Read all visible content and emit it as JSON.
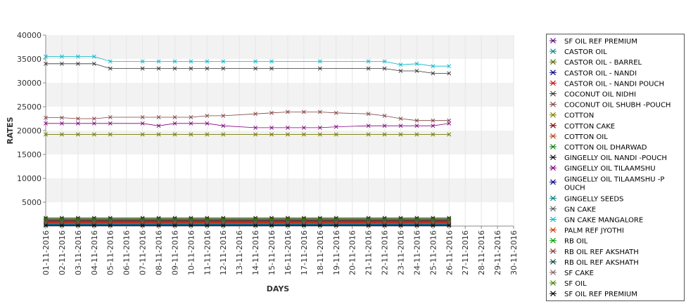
{
  "chart_data": {
    "type": "line",
    "title": "",
    "xlabel": "DAYS",
    "ylabel": "RATES",
    "ylim": [
      0,
      40000
    ],
    "y_ticks": [
      "5000",
      "10000",
      "15000",
      "20000",
      "25000",
      "30000",
      "35000",
      "40000"
    ],
    "y_tick_values": [
      5000,
      10000,
      15000,
      20000,
      25000,
      30000,
      35000,
      40000
    ],
    "grid": "alternating horizontal bands",
    "legend_position": "right",
    "categories": [
      "01-11-2016",
      "02-11-2016",
      "03-11-2016",
      "04-11-2016",
      "05-11-2016",
      "06-11-2016",
      "07-11-2016",
      "08-11-2016",
      "09-11-2016",
      "10-11-2016",
      "11-11-2016",
      "12-11-2016",
      "13-11-2016",
      "14-11-2016",
      "15-11-2016",
      "16-11-2016",
      "17-11-2016",
      "18-11-2016",
      "19-11-2016",
      "20-11-2016",
      "21-11-2016",
      "22-11-2016",
      "23-11-2016",
      "24-11-2016",
      "25-11-2016",
      "26-11-2016",
      "27-11-2016",
      "28-11-2016",
      "29-11-2016",
      "30-11-2016"
    ],
    "series": [
      {
        "name": "SF OIL REF PREMIUM",
        "color": "#55007f",
        "values": [
          1300,
          1300,
          1300,
          1300,
          1300,
          null,
          1300,
          1300,
          1300,
          1300,
          1300,
          1300,
          null,
          1300,
          1300,
          1300,
          1300,
          1300,
          1300,
          null,
          1300,
          1300,
          1300,
          1300,
          1300,
          1300,
          null,
          null,
          null,
          null
        ]
      },
      {
        "name": "CASTOR OIL",
        "color": "#007f7f",
        "values": [
          400,
          400,
          400,
          400,
          400,
          null,
          400,
          400,
          400,
          400,
          400,
          400,
          null,
          400,
          400,
          400,
          400,
          400,
          400,
          null,
          400,
          400,
          400,
          400,
          400,
          400,
          null,
          null,
          null,
          null
        ]
      },
      {
        "name": "CASTOR OIL - BARREL",
        "color": "#556b00",
        "values": [
          19200,
          19200,
          19200,
          19200,
          19200,
          null,
          19200,
          19200,
          19200,
          19200,
          19200,
          19200,
          null,
          19200,
          19200,
          19200,
          19200,
          19200,
          19200,
          null,
          19200,
          19200,
          19200,
          19200,
          19200,
          19200,
          null,
          null,
          null,
          null
        ]
      },
      {
        "name": "CASTOR OIL - NANDI",
        "color": "#00007f",
        "values": [
          900,
          900,
          900,
          900,
          900,
          null,
          900,
          900,
          900,
          900,
          900,
          900,
          null,
          900,
          900,
          900,
          900,
          900,
          900,
          null,
          900,
          900,
          900,
          900,
          900,
          900,
          null,
          null,
          null,
          null
        ]
      },
      {
        "name": "CASTOR OIL - NANDI POUCH",
        "color": "#cc0000",
        "values": [
          800,
          800,
          800,
          800,
          800,
          null,
          800,
          800,
          800,
          800,
          800,
          800,
          null,
          800,
          800,
          800,
          800,
          800,
          800,
          null,
          800,
          800,
          800,
          800,
          800,
          800,
          null,
          null,
          null,
          null
        ]
      },
      {
        "name": "COCONUT OIL NIDHI",
        "color": "#333333",
        "values": [
          34000,
          34000,
          34000,
          34000,
          33000,
          null,
          33000,
          33000,
          33000,
          33000,
          33000,
          33000,
          null,
          33000,
          33000,
          null,
          null,
          33000,
          null,
          null,
          33000,
          33000,
          32500,
          32500,
          32000,
          32000,
          null,
          null,
          null,
          null
        ]
      },
      {
        "name": "COCONUT OIL SHUBH -POUCH",
        "color": "#7f3f3f",
        "values": [
          22700,
          22700,
          22500,
          22500,
          22800,
          null,
          22800,
          22800,
          22800,
          22800,
          23100,
          23100,
          null,
          23500,
          23700,
          23900,
          23900,
          23900,
          23700,
          null,
          23500,
          23100,
          22500,
          22100,
          22100,
          22100,
          null,
          null,
          null,
          null
        ]
      },
      {
        "name": "COTTON",
        "color": "#7f7f00",
        "values": [
          19200,
          19200,
          19200,
          19200,
          19200,
          null,
          19200,
          19200,
          19200,
          19200,
          19200,
          19200,
          null,
          19200,
          19200,
          19200,
          19200,
          19200,
          19200,
          null,
          19200,
          19200,
          19200,
          19200,
          19200,
          19200,
          null,
          null,
          null,
          null
        ]
      },
      {
        "name": "COTTON CAKE",
        "color": "#7f0000",
        "values": [
          1100,
          1100,
          1100,
          1100,
          1100,
          null,
          1100,
          1100,
          1100,
          1100,
          1100,
          1100,
          null,
          1100,
          1100,
          1100,
          1100,
          1100,
          1100,
          null,
          1100,
          1100,
          1100,
          1100,
          1100,
          1100,
          null,
          null,
          null,
          null
        ]
      },
      {
        "name": "COTTON OIL",
        "color": "#b04010",
        "values": [
          600,
          600,
          600,
          600,
          600,
          null,
          600,
          600,
          600,
          600,
          600,
          600,
          null,
          600,
          600,
          600,
          600,
          600,
          600,
          null,
          600,
          600,
          600,
          600,
          600,
          600,
          null,
          null,
          null,
          null
        ]
      },
      {
        "name": "COTTON OIL DHARWAD",
        "color": "#007f00",
        "values": [
          1400,
          1400,
          1400,
          1400,
          1400,
          null,
          1400,
          1400,
          1400,
          1400,
          1400,
          1400,
          null,
          1400,
          1400,
          1400,
          1400,
          1400,
          1400,
          null,
          1400,
          1400,
          1400,
          1400,
          1400,
          1400,
          null,
          null,
          null,
          null
        ]
      },
      {
        "name": "GINGELLY OIL NANDI -POUCH",
        "color": "#000000",
        "values": [
          1700,
          1700,
          1700,
          1700,
          1700,
          null,
          1700,
          1700,
          1700,
          1700,
          1700,
          1700,
          null,
          1700,
          1700,
          1700,
          1700,
          1700,
          1700,
          null,
          1700,
          1700,
          1700,
          1700,
          1700,
          1700,
          null,
          null,
          null,
          null
        ]
      },
      {
        "name": "GINGELLY OIL TILAAMSHU",
        "color": "#7f007f",
        "values": [
          21500,
          21500,
          21500,
          21500,
          21500,
          null,
          21500,
          21000,
          21500,
          21500,
          21500,
          21000,
          null,
          20600,
          20600,
          20600,
          20600,
          20600,
          20800,
          null,
          21000,
          21000,
          21000,
          21000,
          21000,
          21500,
          null,
          null,
          null,
          null
        ]
      },
      {
        "name": "GINGELLY OIL TILAAMSHU -POUCH",
        "color": "#00007f",
        "values": [
          300,
          300,
          300,
          300,
          300,
          null,
          300,
          300,
          300,
          300,
          300,
          300,
          null,
          300,
          300,
          300,
          300,
          300,
          300,
          null,
          300,
          300,
          300,
          300,
          300,
          300,
          null,
          null,
          null,
          null
        ]
      },
      {
        "name": "GINGELLY SEEDS",
        "color": "#007f7f",
        "values": [
          200,
          200,
          200,
          200,
          200,
          null,
          200,
          200,
          200,
          200,
          200,
          200,
          null,
          200,
          200,
          200,
          200,
          200,
          200,
          null,
          200,
          200,
          200,
          200,
          200,
          200,
          null,
          null,
          null,
          null
        ]
      },
      {
        "name": "GN CAKE",
        "color": "#555555",
        "values": [
          500,
          500,
          500,
          500,
          500,
          null,
          500,
          500,
          500,
          500,
          500,
          500,
          null,
          500,
          500,
          500,
          500,
          500,
          500,
          null,
          500,
          500,
          500,
          500,
          500,
          500,
          null,
          null,
          null,
          null
        ]
      },
      {
        "name": "GN CAKE MANGALORE",
        "color": "#00b8cc",
        "values": [
          35500,
          35500,
          35500,
          35500,
          34500,
          null,
          34500,
          34500,
          34500,
          34500,
          34500,
          34500,
          null,
          34500,
          34500,
          null,
          null,
          34500,
          null,
          null,
          34500,
          34500,
          33800,
          34000,
          33500,
          33500,
          null,
          null,
          null,
          null
        ]
      },
      {
        "name": "PALM REF JYOTHI",
        "color": "#cc3300",
        "values": [
          700,
          700,
          700,
          700,
          700,
          null,
          700,
          700,
          700,
          700,
          700,
          700,
          null,
          700,
          700,
          700,
          700,
          700,
          700,
          null,
          700,
          700,
          700,
          700,
          700,
          700,
          null,
          null,
          null,
          null
        ]
      },
      {
        "name": "RB OIL",
        "color": "#00a000",
        "values": [
          1000,
          1000,
          1000,
          1000,
          1000,
          null,
          1000,
          1000,
          1000,
          1000,
          1000,
          1000,
          null,
          1000,
          1000,
          1000,
          1000,
          1000,
          1000,
          null,
          1000,
          1000,
          1000,
          1000,
          1000,
          1000,
          null,
          null,
          null,
          null
        ]
      },
      {
        "name": "RB OIL REF  AKSHATH",
        "color": "#7f3f3f",
        "values": [
          1200,
          1200,
          1200,
          1200,
          1200,
          null,
          1200,
          1200,
          1200,
          1200,
          1200,
          1200,
          null,
          1200,
          1200,
          1200,
          1200,
          1200,
          1200,
          null,
          1200,
          1200,
          1200,
          1200,
          1200,
          1200,
          null,
          null,
          null,
          null
        ]
      },
      {
        "name": "RB OIL REF AKSHATH",
        "color": "#003f3f",
        "values": [
          1000,
          1000,
          1000,
          1000,
          1000,
          null,
          1000,
          1000,
          1000,
          1000,
          1000,
          1000,
          null,
          1000,
          1000,
          1000,
          1000,
          1000,
          1000,
          null,
          1000,
          1000,
          1000,
          1000,
          1000,
          1000,
          null,
          null,
          null,
          null
        ]
      },
      {
        "name": "SF CAKE",
        "color": "#7f5f5f",
        "values": [
          900,
          900,
          900,
          900,
          900,
          null,
          900,
          900,
          900,
          900,
          900,
          900,
          null,
          900,
          900,
          900,
          900,
          900,
          900,
          null,
          900,
          900,
          900,
          900,
          900,
          900,
          null,
          null,
          null,
          null
        ]
      },
      {
        "name": "SF OIL",
        "color": "#3f7f00",
        "values": [
          1500,
          1500,
          1500,
          1500,
          1500,
          null,
          1500,
          1500,
          1500,
          1500,
          1500,
          1500,
          null,
          1500,
          1500,
          1500,
          1500,
          1500,
          1500,
          null,
          1500,
          1500,
          1500,
          1500,
          1500,
          1500,
          null,
          null,
          null,
          null
        ]
      },
      {
        "name": "SF OIL REF PREMIUM",
        "color": "#000000",
        "values": [
          100,
          100,
          100,
          100,
          100,
          null,
          100,
          100,
          100,
          100,
          100,
          100,
          null,
          100,
          100,
          100,
          100,
          100,
          100,
          null,
          100,
          100,
          100,
          100,
          100,
          100,
          null,
          null,
          null,
          null
        ]
      }
    ],
    "legend": [
      {
        "label": "SF OIL REF PREMIUM",
        "color": "#55007f"
      },
      {
        "label": "CASTOR OIL",
        "color": "#007f7f"
      },
      {
        "label": "CASTOR OIL - BARREL",
        "color": "#556b00"
      },
      {
        "label": "CASTOR OIL - NANDI",
        "color": "#00007f"
      },
      {
        "label": "CASTOR OIL - NANDI POUCH",
        "color": "#cc0000"
      },
      {
        "label": "COCONUT OIL NIDHI",
        "color": "#333333"
      },
      {
        "label": "COCONUT OIL SHUBH -POUCH",
        "color": "#7f3f3f"
      },
      {
        "label": "COTTON",
        "color": "#7f7f00"
      },
      {
        "label": "COTTON CAKE",
        "color": "#7f0000"
      },
      {
        "label": "COTTON OIL",
        "color": "#b04010"
      },
      {
        "label": "COTTON OIL DHARWAD",
        "color": "#007f00"
      },
      {
        "label": "GINGELLY OIL NANDI -POUCH",
        "color": "#000000"
      },
      {
        "label": "GINGELLY OIL TILAAMSHU",
        "color": "#7f007f"
      },
      {
        "label": "GINGELLY OIL TILAAMSHU -P",
        "label2": "OUCH",
        "color": "#00007f"
      },
      {
        "label": "GINGELLY SEEDS",
        "color": "#007f7f"
      },
      {
        "label": "GN CAKE",
        "color": "#555555"
      },
      {
        "label": "GN CAKE MANGALORE",
        "color": "#00b8cc"
      },
      {
        "label": "PALM REF JYOTHI",
        "color": "#cc3300"
      },
      {
        "label": "RB OIL",
        "color": "#00a000"
      },
      {
        "label": "RB OIL REF  AKSHATH",
        "color": "#7f3f3f"
      },
      {
        "label": "RB OIL REF AKSHATH",
        "color": "#003f3f"
      },
      {
        "label": "SF CAKE",
        "color": "#7f5f5f"
      },
      {
        "label": "SF OIL",
        "color": "#3f7f00"
      },
      {
        "label": "SF OIL REF PREMIUM",
        "color": "#000000"
      }
    ]
  }
}
